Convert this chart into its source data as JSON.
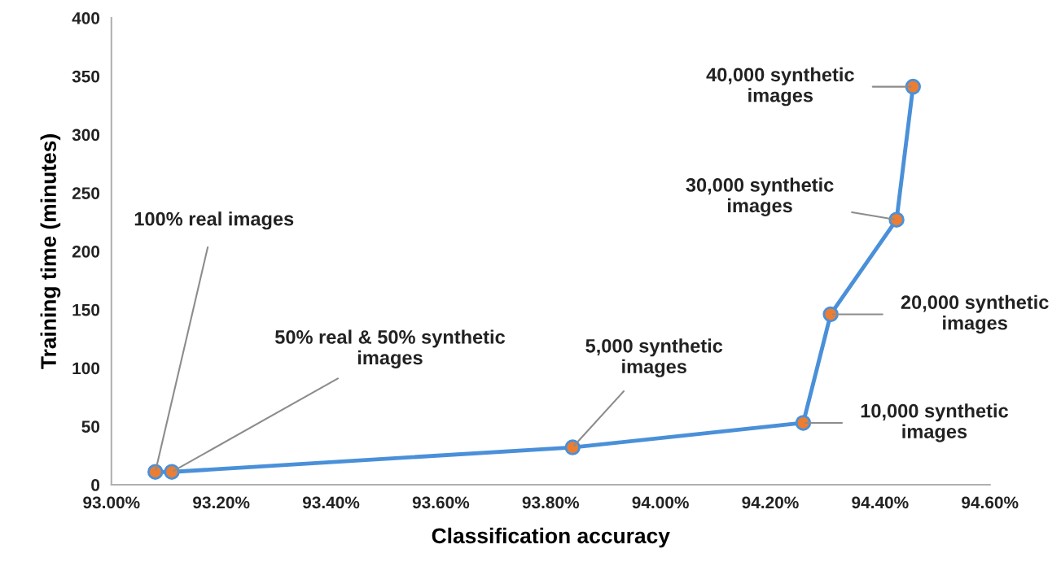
{
  "chart_data": {
    "type": "line",
    "xlabel": "Classification accuracy",
    "ylabel": "Training time (minutes)",
    "x": [
      93.08,
      93.11,
      93.84,
      94.26,
      94.31,
      94.43,
      94.46
    ],
    "series": [
      {
        "color": "#4a90d9",
        "values": [
          11,
          11,
          32,
          53,
          146,
          227,
          341
        ]
      }
    ],
    "marker": "circle",
    "line_style": "solid",
    "grid": false,
    "xlim": [
      93.0,
      94.6
    ],
    "xticks": [
      {
        "value": 93.0,
        "label": "93.00%"
      },
      {
        "value": 93.2,
        "label": "93.20%"
      },
      {
        "value": 93.4,
        "label": "93.40%"
      },
      {
        "value": 93.6,
        "label": "93.60%"
      },
      {
        "value": 93.8,
        "label": "93.80%"
      },
      {
        "value": 94.0,
        "label": "94.00%"
      },
      {
        "value": 94.2,
        "label": "94.20%"
      },
      {
        "value": 94.4,
        "label": "94.40%"
      },
      {
        "value": 94.6,
        "label": "94.60%"
      }
    ],
    "ylim": [
      0,
      400
    ],
    "yticks": [
      0,
      50,
      100,
      150,
      200,
      250,
      300,
      350,
      400
    ],
    "annotations": [
      {
        "text": "100% real images",
        "x": 93.08,
        "y": 11
      },
      {
        "text": "50% real & 50% synthetic\nimages",
        "x": 93.11,
        "y": 11
      },
      {
        "text": "5,000 synthetic\nimages",
        "x": 93.84,
        "y": 32
      },
      {
        "text": "10,000 synthetic\nimages",
        "x": 94.26,
        "y": 53
      },
      {
        "text": "20,000 synthetic\nimages",
        "x": 94.31,
        "y": 146
      },
      {
        "text": "30,000 synthetic\nimages",
        "x": 94.43,
        "y": 227
      },
      {
        "text": "40,000 synthetic\nimages",
        "x": 94.46,
        "y": 341
      }
    ]
  }
}
